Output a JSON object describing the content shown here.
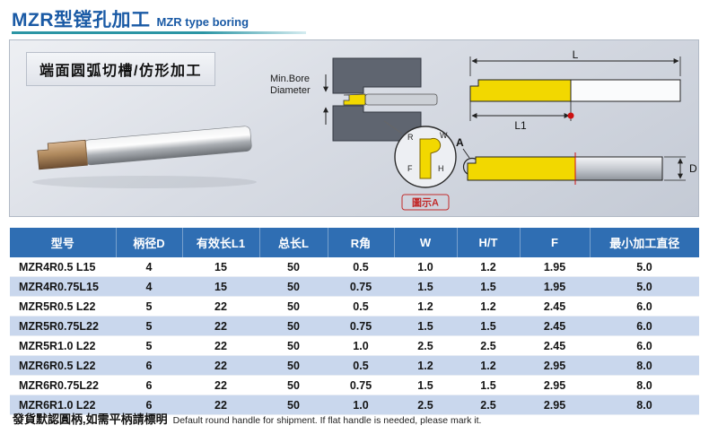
{
  "header": {
    "title_zh": "MZR型镗孔加工",
    "title_en": "MZR type boring"
  },
  "diagram": {
    "caption": "端面圆弧切槽/仿形加工",
    "min_bore_line1": "Min.Bore",
    "min_bore_line2": "Diameter",
    "detail_label": "圖示A",
    "dims": {
      "L": "L",
      "L1": "L1",
      "D": "D",
      "A": "A",
      "F": "F",
      "H": "H",
      "R": "R",
      "W": "W"
    }
  },
  "table": {
    "headers": [
      "型号",
      "柄径D",
      "有效长L1",
      "总长L",
      "R角",
      "W",
      "H/T",
      "F",
      "最小加工直径"
    ],
    "rows": [
      [
        "MZR4R0.5 L15",
        "4",
        "15",
        "50",
        "0.5",
        "1.0",
        "1.2",
        "1.95",
        "5.0"
      ],
      [
        "MZR4R0.75L15",
        "4",
        "15",
        "50",
        "0.75",
        "1.5",
        "1.5",
        "1.95",
        "5.0"
      ],
      [
        "MZR5R0.5  L22",
        "5",
        "22",
        "50",
        "0.5",
        "1.2",
        "1.2",
        "2.45",
        "6.0"
      ],
      [
        "MZR5R0.75L22",
        "5",
        "22",
        "50",
        "0.75",
        "1.5",
        "1.5",
        "2.45",
        "6.0"
      ],
      [
        "MZR5R1.0  L22",
        "5",
        "22",
        "50",
        "1.0",
        "2.5",
        "2.5",
        "2.45",
        "6.0"
      ],
      [
        "MZR6R0.5  L22",
        "6",
        "22",
        "50",
        "0.5",
        "1.2",
        "1.2",
        "2.95",
        "8.0"
      ],
      [
        "MZR6R0.75L22",
        "6",
        "22",
        "50",
        "0.75",
        "1.5",
        "1.5",
        "2.95",
        "8.0"
      ],
      [
        "MZR6R1.0  L22",
        "6",
        "22",
        "50",
        "1.0",
        "2.5",
        "2.5",
        "2.95",
        "8.0"
      ]
    ]
  },
  "footer": {
    "zh": "發貨默認圓柄,如需平柄請標明",
    "en": "Default round handle for shipment. If flat handle is needed, please mark it."
  },
  "colors": {
    "title_blue": "#1a5aa5",
    "underline_teal": "#2b95a4",
    "table_header_bg": "#2f6eb3",
    "row_alt_blue": "#c9d7ed",
    "insert_yellow": "#f2d800",
    "detail_red": "#c22b2b"
  }
}
